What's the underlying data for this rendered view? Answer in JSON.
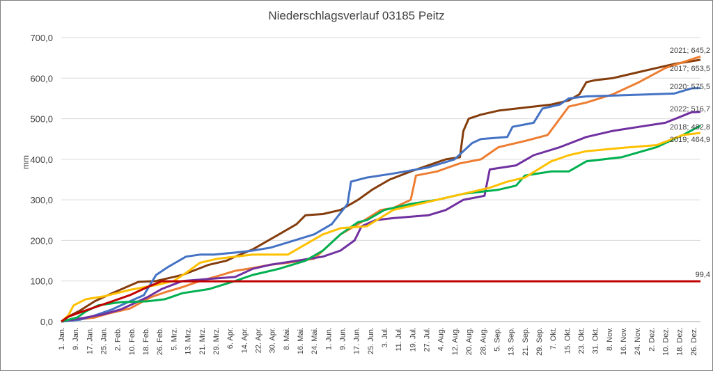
{
  "chart_data": {
    "type": "line",
    "title": "Niederschlagsverlauf 03185 Peitz",
    "xlabel": "",
    "ylabel": "mm",
    "ylim": [
      0,
      700
    ],
    "yticks": [
      "0,0",
      "100,0",
      "200,0",
      "300,0",
      "400,0",
      "500,0",
      "600,0",
      "700,0"
    ],
    "x_tick_labels": [
      "1. Jan.",
      "9. Jan.",
      "17. Jan.",
      "25. Jan.",
      "2. Feb.",
      "10. Feb.",
      "18. Feb.",
      "26. Feb.",
      "5. Mrz.",
      "13. Mrz.",
      "21. Mrz.",
      "29. Mrz.",
      "6. Apr.",
      "14. Apr.",
      "22. Apr.",
      "30. Apr.",
      "8. Mai.",
      "16. Mai.",
      "24. Mai.",
      "1. Jun.",
      "9. Jun.",
      "17. Jun.",
      "25. Jun.",
      "3. Jul.",
      "11. Jul.",
      "19. Jul.",
      "27. Jul.",
      "4. Aug.",
      "12. Aug.",
      "20. Aug.",
      "28. Aug.",
      "5. Sep.",
      "13. Sep.",
      "21. Sep.",
      "29. Sep.",
      "7. Okt.",
      "15. Okt.",
      "23. Okt.",
      "31. Okt.",
      "8. Nov.",
      "16. Nov.",
      "24. Nov.",
      "2. Dez.",
      "10. Dez.",
      "18. Dez.",
      "26. Dez."
    ],
    "grid": true,
    "series": [
      {
        "label": "2021; 645,2",
        "color": "#843c0c",
        "days": [
          1,
          5,
          12,
          20,
          30,
          38,
          45,
          55,
          70,
          85,
          95,
          100,
          110,
          125,
          135,
          140,
          150,
          160,
          170,
          178,
          188,
          200,
          210,
          220,
          228,
          230,
          233,
          240,
          250,
          260,
          270,
          280,
          290,
          296,
          300,
          305,
          315,
          330,
          340,
          350,
          365
        ],
        "values": [
          0,
          12,
          28,
          50,
          70,
          85,
          98,
          100,
          115,
          140,
          150,
          160,
          178,
          215,
          240,
          262,
          265,
          275,
          300,
          325,
          350,
          370,
          385,
          400,
          405,
          470,
          500,
          510,
          520,
          525,
          530,
          535,
          545,
          560,
          590,
          595,
          600,
          615,
          625,
          635,
          645.2
        ]
      },
      {
        "label": "2017; 653,5",
        "color": "#ed7d31",
        "days": [
          1,
          20,
          28,
          40,
          52,
          60,
          70,
          80,
          90,
          100,
          110,
          120,
          130,
          145,
          160,
          170,
          183,
          190,
          200,
          203,
          215,
          228,
          240,
          250,
          265,
          278,
          290,
          300,
          315,
          330,
          345,
          365
        ],
        "values": [
          0,
          10,
          20,
          32,
          60,
          72,
          85,
          100,
          112,
          125,
          132,
          140,
          145,
          155,
          215,
          240,
          275,
          280,
          300,
          360,
          370,
          390,
          400,
          430,
          445,
          460,
          530,
          540,
          560,
          590,
          625,
          653.5
        ]
      },
      {
        "label": "2020; 575,5",
        "color": "#4472c4",
        "days": [
          1,
          12,
          20,
          30,
          40,
          48,
          55,
          62,
          72,
          80,
          88,
          100,
          110,
          120,
          130,
          145,
          155,
          164,
          166,
          175,
          190,
          210,
          225,
          235,
          240,
          255,
          258,
          270,
          275,
          285,
          290,
          300,
          350,
          360,
          365
        ],
        "values": [
          0,
          5,
          15,
          30,
          50,
          65,
          115,
          135,
          160,
          165,
          165,
          170,
          175,
          182,
          195,
          215,
          240,
          290,
          345,
          355,
          365,
          380,
          400,
          440,
          450,
          455,
          480,
          490,
          525,
          535,
          550,
          555,
          562,
          575,
          575.5
        ]
      },
      {
        "label": "2022; 516,7",
        "color": "#7030a0",
        "days": [
          1,
          15,
          25,
          35,
          50,
          58,
          70,
          85,
          100,
          110,
          120,
          135,
          150,
          160,
          168,
          172,
          180,
          190,
          210,
          220,
          230,
          242,
          245,
          260,
          270,
          285,
          300,
          315,
          330,
          345,
          360,
          365
        ],
        "values": [
          0,
          10,
          18,
          30,
          60,
          80,
          100,
          105,
          110,
          130,
          140,
          150,
          160,
          175,
          200,
          235,
          250,
          255,
          262,
          275,
          300,
          310,
          375,
          385,
          410,
          430,
          455,
          470,
          480,
          490,
          516,
          516.7
        ]
      },
      {
        "label": "2018; 482,8",
        "color": "#00b050",
        "days": [
          1,
          10,
          15,
          22,
          35,
          50,
          60,
          70,
          85,
          100,
          110,
          125,
          140,
          150,
          160,
          170,
          175,
          185,
          200,
          215,
          230,
          250,
          260,
          265,
          280,
          290,
          300,
          320,
          340,
          355,
          365
        ],
        "values": [
          0,
          10,
          25,
          40,
          48,
          50,
          55,
          70,
          80,
          100,
          115,
          130,
          150,
          175,
          215,
          245,
          250,
          275,
          290,
          300,
          315,
          325,
          335,
          360,
          370,
          370,
          395,
          405,
          430,
          460,
          482.8
        ]
      },
      {
        "label": "2019; 464,9",
        "color": "#ffc000",
        "days": [
          1,
          5,
          8,
          15,
          25,
          40,
          55,
          65,
          72,
          80,
          90,
          100,
          110,
          130,
          150,
          160,
          175,
          190,
          200,
          215,
          230,
          245,
          255,
          265,
          280,
          290,
          300,
          320,
          340,
          355,
          365
        ],
        "values": [
          0,
          15,
          40,
          55,
          62,
          78,
          90,
          100,
          120,
          145,
          155,
          160,
          165,
          165,
          215,
          230,
          235,
          275,
          285,
          300,
          315,
          330,
          345,
          355,
          395,
          410,
          420,
          428,
          435,
          460,
          464.9
        ]
      },
      {
        "label": "99,4",
        "color": "#c00000",
        "days": [
          1,
          5,
          10,
          20,
          30,
          40,
          50,
          58,
          365
        ],
        "values": [
          0,
          12,
          20,
          35,
          50,
          65,
          85,
          99.4,
          99.4
        ]
      }
    ]
  }
}
